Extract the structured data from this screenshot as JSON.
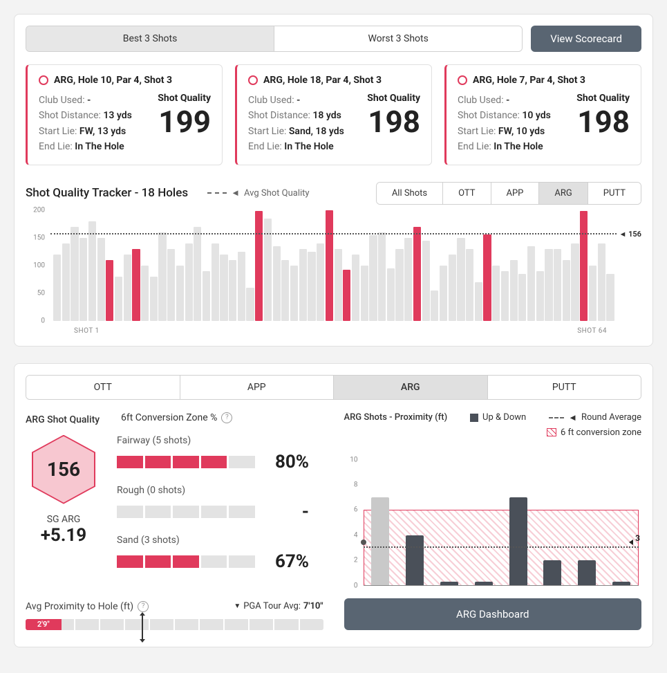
{
  "colors": {
    "accent": "#e03a5c",
    "dark": "#4a5059",
    "button": "#596572",
    "muted": "#e3e3e3",
    "hexfill": "#f7c7d0"
  },
  "top_tabs": {
    "best": "Best 3 Shots",
    "worst": "Worst 3 Shots",
    "active": "best"
  },
  "view_scorecard": "View Scorecard",
  "shot_cards": [
    {
      "title": "ARG, Hole 10, Par 4, Shot 3",
      "club": "-",
      "distance": "13 yds",
      "start": "FW, 13 yds",
      "end": "In The Hole",
      "sq": "199"
    },
    {
      "title": "ARG, Hole 18, Par 4, Shot 3",
      "club": "-",
      "distance": "18 yds",
      "start": "Sand, 18 yds",
      "end": "In The Hole",
      "sq": "198"
    },
    {
      "title": "ARG, Hole 7, Par 4, Shot 3",
      "club": "-",
      "distance": "10 yds",
      "start": "FW, 10 yds",
      "end": "In The Hole",
      "sq": "198"
    }
  ],
  "labels": {
    "club": "Club Used: ",
    "dist": "Shot Distance: ",
    "start": "Start Lie: ",
    "end": "End Lie: ",
    "sq": "Shot Quality"
  },
  "tracker": {
    "title": "Shot Quality Tracker - 18 Holes",
    "avg_label": "Avg Shot Quality",
    "filters": [
      "All Shots",
      "OTT",
      "APP",
      "ARG",
      "PUTT"
    ],
    "active": "ARG",
    "ymax": 200,
    "yticks": [
      0,
      50,
      100,
      150,
      200
    ],
    "avg_value": 156,
    "xlabel_first": "SHOT 1",
    "xlabel_last": "SHOT 64",
    "bars": [
      {
        "v": 120,
        "hl": false
      },
      {
        "v": 140,
        "hl": false
      },
      {
        "v": 170,
        "hl": false
      },
      {
        "v": 150,
        "hl": false
      },
      {
        "v": 180,
        "hl": false
      },
      {
        "v": 150,
        "hl": false
      },
      {
        "v": 110,
        "hl": true
      },
      {
        "v": 80,
        "hl": false
      },
      {
        "v": 120,
        "hl": false
      },
      {
        "v": 130,
        "hl": true
      },
      {
        "v": 100,
        "hl": false
      },
      {
        "v": 80,
        "hl": false
      },
      {
        "v": 160,
        "hl": false
      },
      {
        "v": 130,
        "hl": false
      },
      {
        "v": 100,
        "hl": false
      },
      {
        "v": 140,
        "hl": false
      },
      {
        "v": 170,
        "hl": false
      },
      {
        "v": 90,
        "hl": false
      },
      {
        "v": 140,
        "hl": false
      },
      {
        "v": 120,
        "hl": false
      },
      {
        "v": 110,
        "hl": false
      },
      {
        "v": 125,
        "hl": false
      },
      {
        "v": 60,
        "hl": false
      },
      {
        "v": 198,
        "hl": true
      },
      {
        "v": 185,
        "hl": false
      },
      {
        "v": 135,
        "hl": false
      },
      {
        "v": 110,
        "hl": false
      },
      {
        "v": 100,
        "hl": false
      },
      {
        "v": 130,
        "hl": false
      },
      {
        "v": 125,
        "hl": false
      },
      {
        "v": 140,
        "hl": false
      },
      {
        "v": 199,
        "hl": true
      },
      {
        "v": 130,
        "hl": false
      },
      {
        "v": 92,
        "hl": true
      },
      {
        "v": 120,
        "hl": false
      },
      {
        "v": 100,
        "hl": false
      },
      {
        "v": 155,
        "hl": false
      },
      {
        "v": 160,
        "hl": false
      },
      {
        "v": 95,
        "hl": false
      },
      {
        "v": 130,
        "hl": false
      },
      {
        "v": 150,
        "hl": false
      },
      {
        "v": 170,
        "hl": true
      },
      {
        "v": 145,
        "hl": false
      },
      {
        "v": 55,
        "hl": false
      },
      {
        "v": 100,
        "hl": false
      },
      {
        "v": 120,
        "hl": false
      },
      {
        "v": 150,
        "hl": false
      },
      {
        "v": 130,
        "hl": false
      },
      {
        "v": 70,
        "hl": false
      },
      {
        "v": 156,
        "hl": true
      },
      {
        "v": 100,
        "hl": false
      },
      {
        "v": 90,
        "hl": false
      },
      {
        "v": 110,
        "hl": false
      },
      {
        "v": 85,
        "hl": false
      },
      {
        "v": 135,
        "hl": false
      },
      {
        "v": 90,
        "hl": false
      },
      {
        "v": 130,
        "hl": false
      },
      {
        "v": 130,
        "hl": false
      },
      {
        "v": 110,
        "hl": false
      },
      {
        "v": 140,
        "hl": false
      },
      {
        "v": 198,
        "hl": true
      },
      {
        "v": 100,
        "hl": false
      },
      {
        "v": 140,
        "hl": false
      },
      {
        "v": 85,
        "hl": false
      }
    ]
  },
  "bottom_tabs": {
    "items": [
      "OTT",
      "APP",
      "ARG",
      "PUTT"
    ],
    "active": "ARG"
  },
  "bl": {
    "title": "ARG Shot Quality",
    "conv_title": "6ft Conversion Zone %",
    "hex_value": "156",
    "sg_label": "SG ARG",
    "sg_value": "+5.19",
    "rows": [
      {
        "label": "Fairway (5 shots)",
        "fill": 4,
        "total": 5,
        "pct": "80%"
      },
      {
        "label": "Rough (0 shots)",
        "fill": 0,
        "total": 5,
        "pct": "-"
      },
      {
        "label": "Sand (3 shots)",
        "fill": 3,
        "total": 5,
        "frac": 0.67,
        "pct": "67%"
      }
    ],
    "prox_label": "Avg Proximity to Hole (ft)",
    "pga_label": "PGA Tour Avg:",
    "pga_val": "7'10\"",
    "prox_fill_pct": 12,
    "prox_marker_pct": 39,
    "prox_text": "2'9\""
  },
  "br": {
    "title": "ARG Shots - Proximity (ft)",
    "legend_updown": "Up & Down",
    "legend_round": "Round Average",
    "legend_zone": "6 ft conversion zone",
    "ymax": 11,
    "yticks": [
      0,
      2,
      4,
      6,
      8,
      10
    ],
    "zone_max": 6,
    "avg": 3,
    "bars": [
      {
        "v": 7,
        "ud": false
      },
      {
        "v": 4,
        "ud": true
      },
      {
        "v": 0.3,
        "ud": true
      },
      {
        "v": 0.3,
        "ud": true
      },
      {
        "v": 7,
        "ud": true
      },
      {
        "v": 2,
        "ud": true
      },
      {
        "v": 2,
        "ud": true
      },
      {
        "v": 0.3,
        "ud": true
      }
    ],
    "dash_button": "ARG Dashboard"
  }
}
